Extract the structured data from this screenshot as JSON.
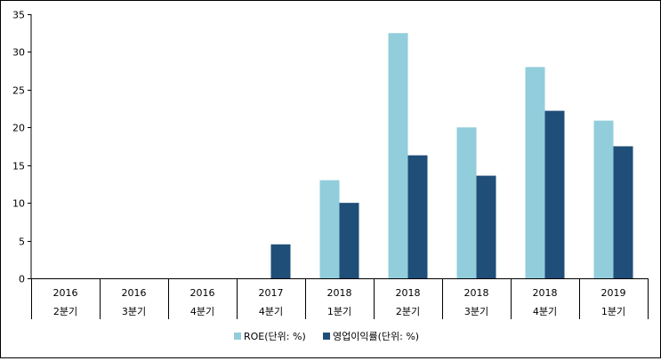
{
  "chart_data": {
    "type": "bar",
    "categories": [
      {
        "year": "2016",
        "quarter": "2분기"
      },
      {
        "year": "2016",
        "quarter": "3분기"
      },
      {
        "year": "2016",
        "quarter": "4분기"
      },
      {
        "year": "2017",
        "quarter": "4분기"
      },
      {
        "year": "2018",
        "quarter": "1분기"
      },
      {
        "year": "2018",
        "quarter": "2분기"
      },
      {
        "year": "2018",
        "quarter": "3분기"
      },
      {
        "year": "2018",
        "quarter": "4분기"
      },
      {
        "year": "2019",
        "quarter": "1분기"
      }
    ],
    "series": [
      {
        "name": "ROE(단위: %)",
        "color": "#92cddc",
        "values": [
          null,
          null,
          null,
          null,
          13.0,
          32.5,
          20.0,
          28.0,
          20.9
        ]
      },
      {
        "name": "영업이익률(단위: %)",
        "color": "#1f4e79",
        "values": [
          null,
          null,
          null,
          4.5,
          10.0,
          16.3,
          13.6,
          22.2,
          17.5
        ]
      }
    ],
    "ylim": [
      0,
      35
    ],
    "yticks": [
      "0",
      "5",
      "10",
      "15",
      "20",
      "25",
      "30",
      "35"
    ],
    "grid": false,
    "legend": "bottom",
    "title": "",
    "xlabel": "",
    "ylabel": ""
  }
}
